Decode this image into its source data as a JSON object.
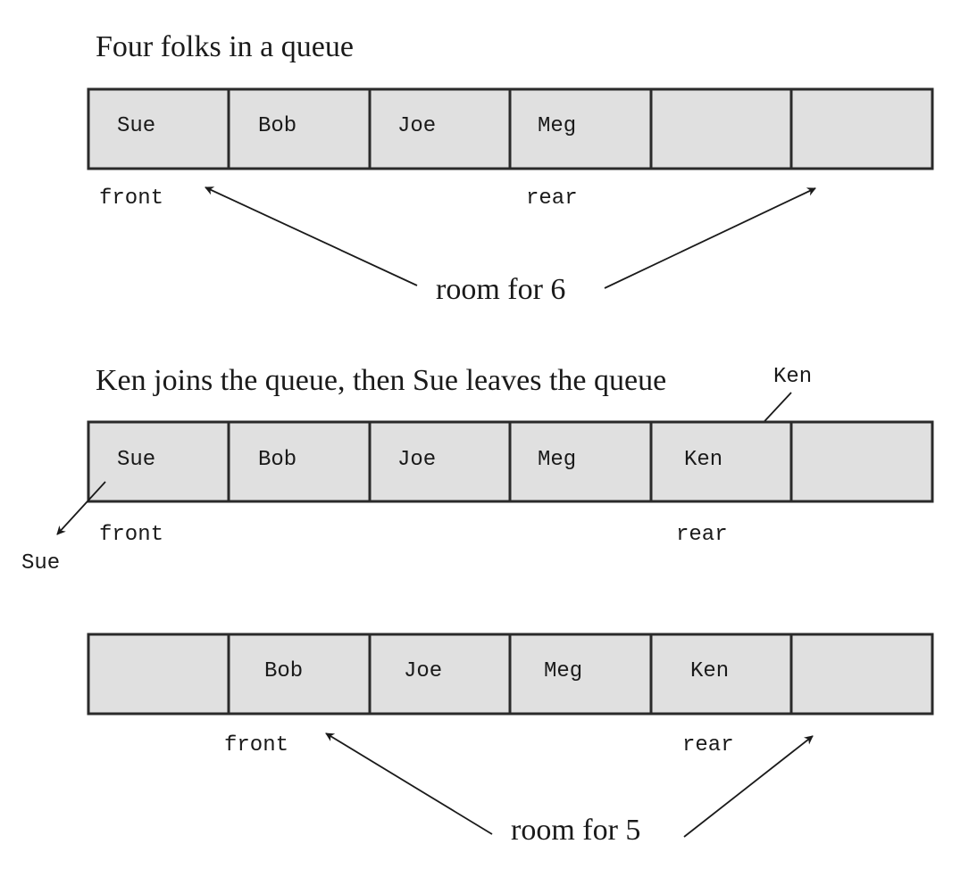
{
  "colors": {
    "cell_fill": "#e0e0e0",
    "cell_border": "#2a2a2a",
    "text": "#1a1a1a"
  },
  "diagram1": {
    "title": "Four folks in a queue",
    "cells": [
      "Sue",
      "Bob",
      "Joe",
      "Meg",
      "",
      ""
    ],
    "front_label": "front",
    "rear_label": "rear",
    "room_label": "room for 6"
  },
  "diagram2": {
    "title": "Ken joins the queue, then Sue leaves the queue",
    "cells": [
      "Sue",
      "Bob",
      "Joe",
      "Meg",
      "Ken",
      ""
    ],
    "incoming_label": "Ken",
    "outgoing_label": "Sue",
    "front_label": "front",
    "rear_label": "rear"
  },
  "diagram3": {
    "cells": [
      "",
      "Bob",
      "Joe",
      "Meg",
      "Ken",
      ""
    ],
    "front_label": "front",
    "rear_label": "rear",
    "room_label": "room for 5"
  }
}
